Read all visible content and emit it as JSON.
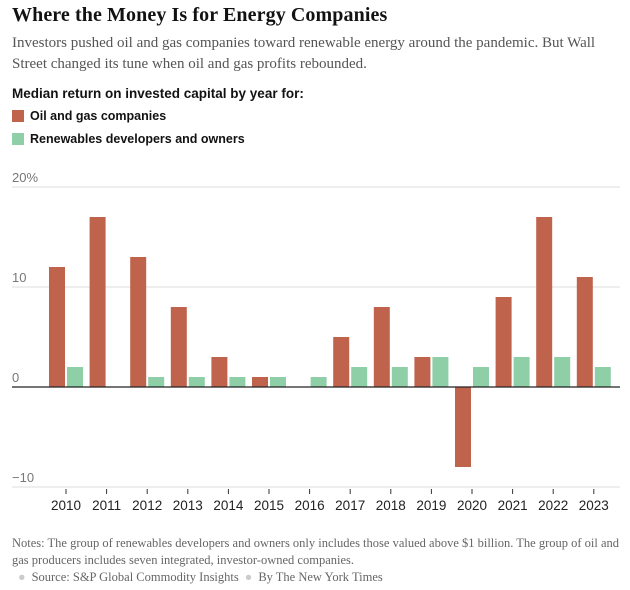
{
  "header": {
    "title": "Where the Money Is for Energy Companies",
    "subtitle": "Investors pushed oil and gas companies toward renewable energy around the pandemic. But Wall Street changed its tune when oil and gas profits rebounded."
  },
  "legend": {
    "title": "Median return on invested capital by year for:",
    "items": [
      {
        "label": "Oil and gas companies",
        "color": "#c0634c"
      },
      {
        "label": "Renewables developers and owners",
        "color": "#8fcfa8"
      }
    ]
  },
  "chart_data": {
    "type": "bar",
    "title": "Median return on invested capital by year",
    "categories": [
      "2010",
      "2011",
      "2012",
      "2013",
      "2014",
      "2015",
      "2016",
      "2017",
      "2018",
      "2019",
      "2020",
      "2021",
      "2022",
      "2023"
    ],
    "series": [
      {
        "name": "Oil and gas companies",
        "color": "#c0634c",
        "values": [
          12,
          17,
          13,
          8,
          3,
          1,
          0,
          5,
          8,
          3,
          -8,
          9,
          17,
          11
        ]
      },
      {
        "name": "Renewables developers and owners",
        "color": "#8fcfa8",
        "values": [
          2,
          0,
          1,
          1,
          1,
          1,
          1,
          2,
          2,
          3,
          2,
          3,
          3,
          2
        ]
      }
    ],
    "ylim": [
      -10,
      20
    ],
    "yticks": [
      20,
      10,
      0,
      -10
    ],
    "ytick_labels": [
      "20%",
      "10",
      "0",
      "−10"
    ],
    "xlabel": "",
    "ylabel": ""
  },
  "footer": {
    "notes": "Notes: The group of renewables developers and owners only includes those valued above $1 billion. The group of oil and gas producers includes seven integrated, investor-owned companies.",
    "source": "Source: S&P Global Commodity Insights",
    "credit": "By The New York Times"
  }
}
